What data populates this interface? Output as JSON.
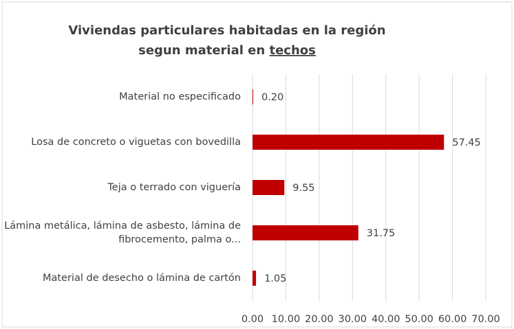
{
  "chart_data": {
    "type": "barh",
    "title": [
      "Viviendas particulares habitadas en la región",
      "segun material en"
    ],
    "title_underlined": "techos",
    "categories": [
      "Material no especificado",
      "Losa de concreto o viguetas con bovedilla",
      "Teja o terrado con viguería",
      "Lámina metálica, lámina de asbesto, lámina de fibrocemento, palma o...",
      "Material de desecho o lámina de cartón"
    ],
    "values": [
      0.2,
      57.45,
      9.55,
      31.75,
      1.05
    ],
    "value_labels": [
      "0.20",
      "57.45",
      "9.55",
      "31.75",
      "1.05"
    ],
    "color": "#c00000",
    "xlim": [
      0,
      70
    ],
    "xticks": [
      {
        "value": 0,
        "label": "0.00"
      },
      {
        "value": 10,
        "label": "10.00"
      },
      {
        "value": 20,
        "label": "20.00"
      },
      {
        "value": 30,
        "label": "30.00"
      },
      {
        "value": 40,
        "label": "40.00"
      },
      {
        "value": 50,
        "label": "50.00"
      },
      {
        "value": 60,
        "label": "60.00"
      },
      {
        "value": 70,
        "label": "70.00"
      }
    ],
    "grid": true
  }
}
